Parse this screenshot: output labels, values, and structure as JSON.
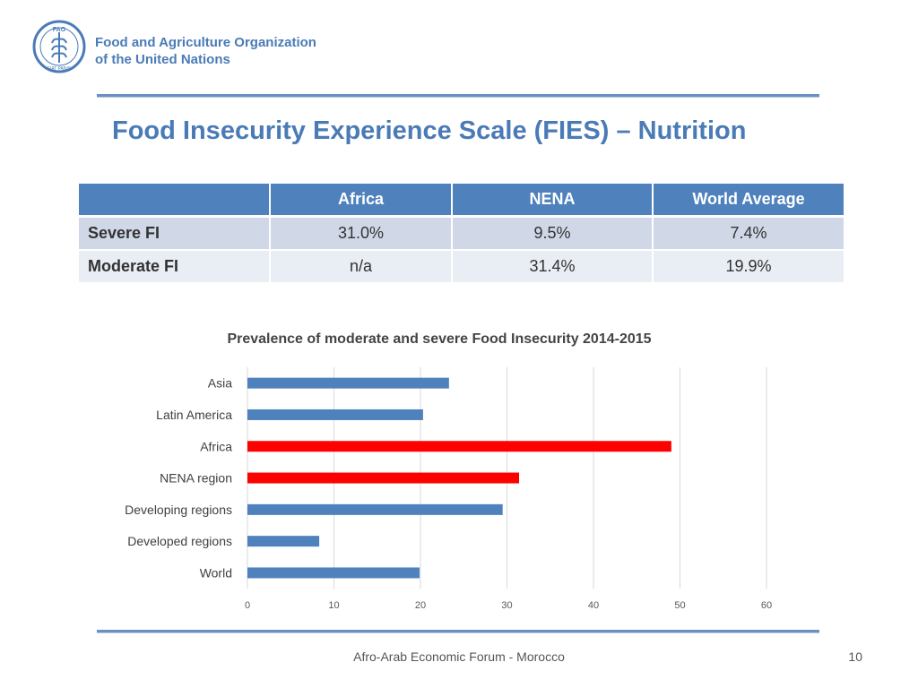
{
  "header": {
    "org_name_line1": "Food and Agriculture Organization",
    "org_name_line2": "of the United Nations",
    "emblem_letters": "FAO",
    "emblem_motto": "FIAT PANIS",
    "brand_color": "#4a7bb7"
  },
  "title": "Food Insecurity Experience Scale (FIES)  – Nutrition",
  "table": {
    "columns": [
      "",
      "Africa",
      "NENA",
      "World Average"
    ],
    "rows": [
      {
        "label": "Severe FI",
        "values": [
          "31.0%",
          "9.5%",
          "7.4%"
        ]
      },
      {
        "label": "Moderate FI",
        "values": [
          "n/a",
          "31.4%",
          "19.9%"
        ]
      }
    ],
    "header_color": "#4f81bd"
  },
  "chart_data": {
    "type": "bar",
    "orientation": "horizontal",
    "title": "Prevalence of moderate and severe Food Insecurity 2014-2015",
    "categories": [
      "Asia",
      "Latin America",
      "Africa",
      "NENA region",
      "Developing regions",
      "Developed regions",
      "World"
    ],
    "values": [
      23.3,
      20.3,
      49.0,
      31.4,
      29.5,
      8.3,
      19.9
    ],
    "highlight": [
      "Africa",
      "NENA region"
    ],
    "xlim": [
      0,
      60
    ],
    "xticks": [
      "0",
      "10",
      "20",
      "30",
      "40",
      "50",
      "60"
    ],
    "grid": true,
    "colors": {
      "default": "#4f81bd",
      "highlight": "#ff0000"
    }
  },
  "footer": {
    "text": "Afro-Arab Economic Forum - Morocco",
    "page": "10"
  }
}
